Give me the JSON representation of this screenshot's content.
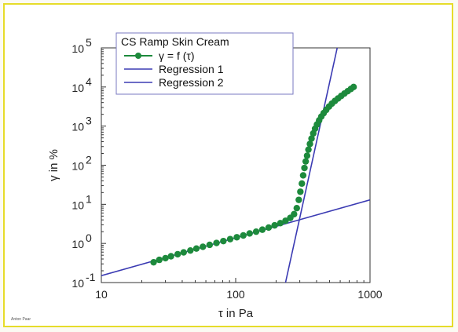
{
  "chart_data": {
    "type": "scatter",
    "xscale": "log",
    "yscale": "log",
    "xlim": [
      10,
      1000
    ],
    "ylim": [
      0.1,
      100000
    ],
    "xlabel": "τ in Pa",
    "ylabel": "γ in %",
    "x_ticks": [
      {
        "value": 10,
        "label": "10"
      },
      {
        "value": 100,
        "label": "100"
      },
      {
        "value": 1000,
        "label": "1000"
      }
    ],
    "y_ticks": [
      {
        "value": 0.1,
        "base": "10",
        "exp": "-1"
      },
      {
        "value": 1,
        "base": "10",
        "exp": "0"
      },
      {
        "value": 10,
        "base": "10",
        "exp": "1"
      },
      {
        "value": 100,
        "base": "10",
        "exp": "2"
      },
      {
        "value": 1000,
        "base": "10",
        "exp": "3"
      },
      {
        "value": 10000,
        "base": "10",
        "exp": "4"
      },
      {
        "value": 100000,
        "base": "10",
        "exp": "5"
      }
    ],
    "legend": {
      "title": "CS Ramp Skin Cream",
      "position": "top-left"
    },
    "grid": false,
    "series": [
      {
        "name": "γ = f (τ)",
        "kind": "markers",
        "color": "#1d8a3c",
        "x": [
          24.5,
          27,
          30,
          33,
          37,
          41,
          46,
          51,
          57,
          64,
          72,
          81,
          91,
          102,
          114,
          127,
          142,
          158,
          176,
          195,
          215,
          235,
          255,
          272,
          285,
          295,
          303,
          311,
          318,
          325,
          332,
          340,
          348,
          357,
          367,
          378,
          390,
          403,
          418,
          434,
          452,
          472,
          495,
          520,
          548,
          578,
          610,
          645,
          682,
          720,
          755
        ],
        "y": [
          0.33,
          0.38,
          0.42,
          0.47,
          0.53,
          0.59,
          0.66,
          0.74,
          0.82,
          0.92,
          1.03,
          1.15,
          1.29,
          1.44,
          1.6,
          1.8,
          2.0,
          2.25,
          2.55,
          2.9,
          3.3,
          3.8,
          4.5,
          5.6,
          8.0,
          13,
          21,
          34,
          55,
          85,
          125,
          175,
          250,
          350,
          480,
          650,
          860,
          1100,
          1400,
          1750,
          2150,
          2600,
          3150,
          3750,
          4400,
          5100,
          5900,
          6800,
          7800,
          8900,
          10000
        ]
      },
      {
        "name": "Regression 1",
        "kind": "line",
        "color": "#3b3bb3",
        "x": [
          235,
          570
        ],
        "y": [
          0.1,
          100000
        ]
      },
      {
        "name": "Regression 2",
        "kind": "line",
        "color": "#3b3bb3",
        "x": [
          10,
          1000
        ],
        "y": [
          0.15,
          13
        ]
      }
    ],
    "footer": "Anton Paar"
  }
}
